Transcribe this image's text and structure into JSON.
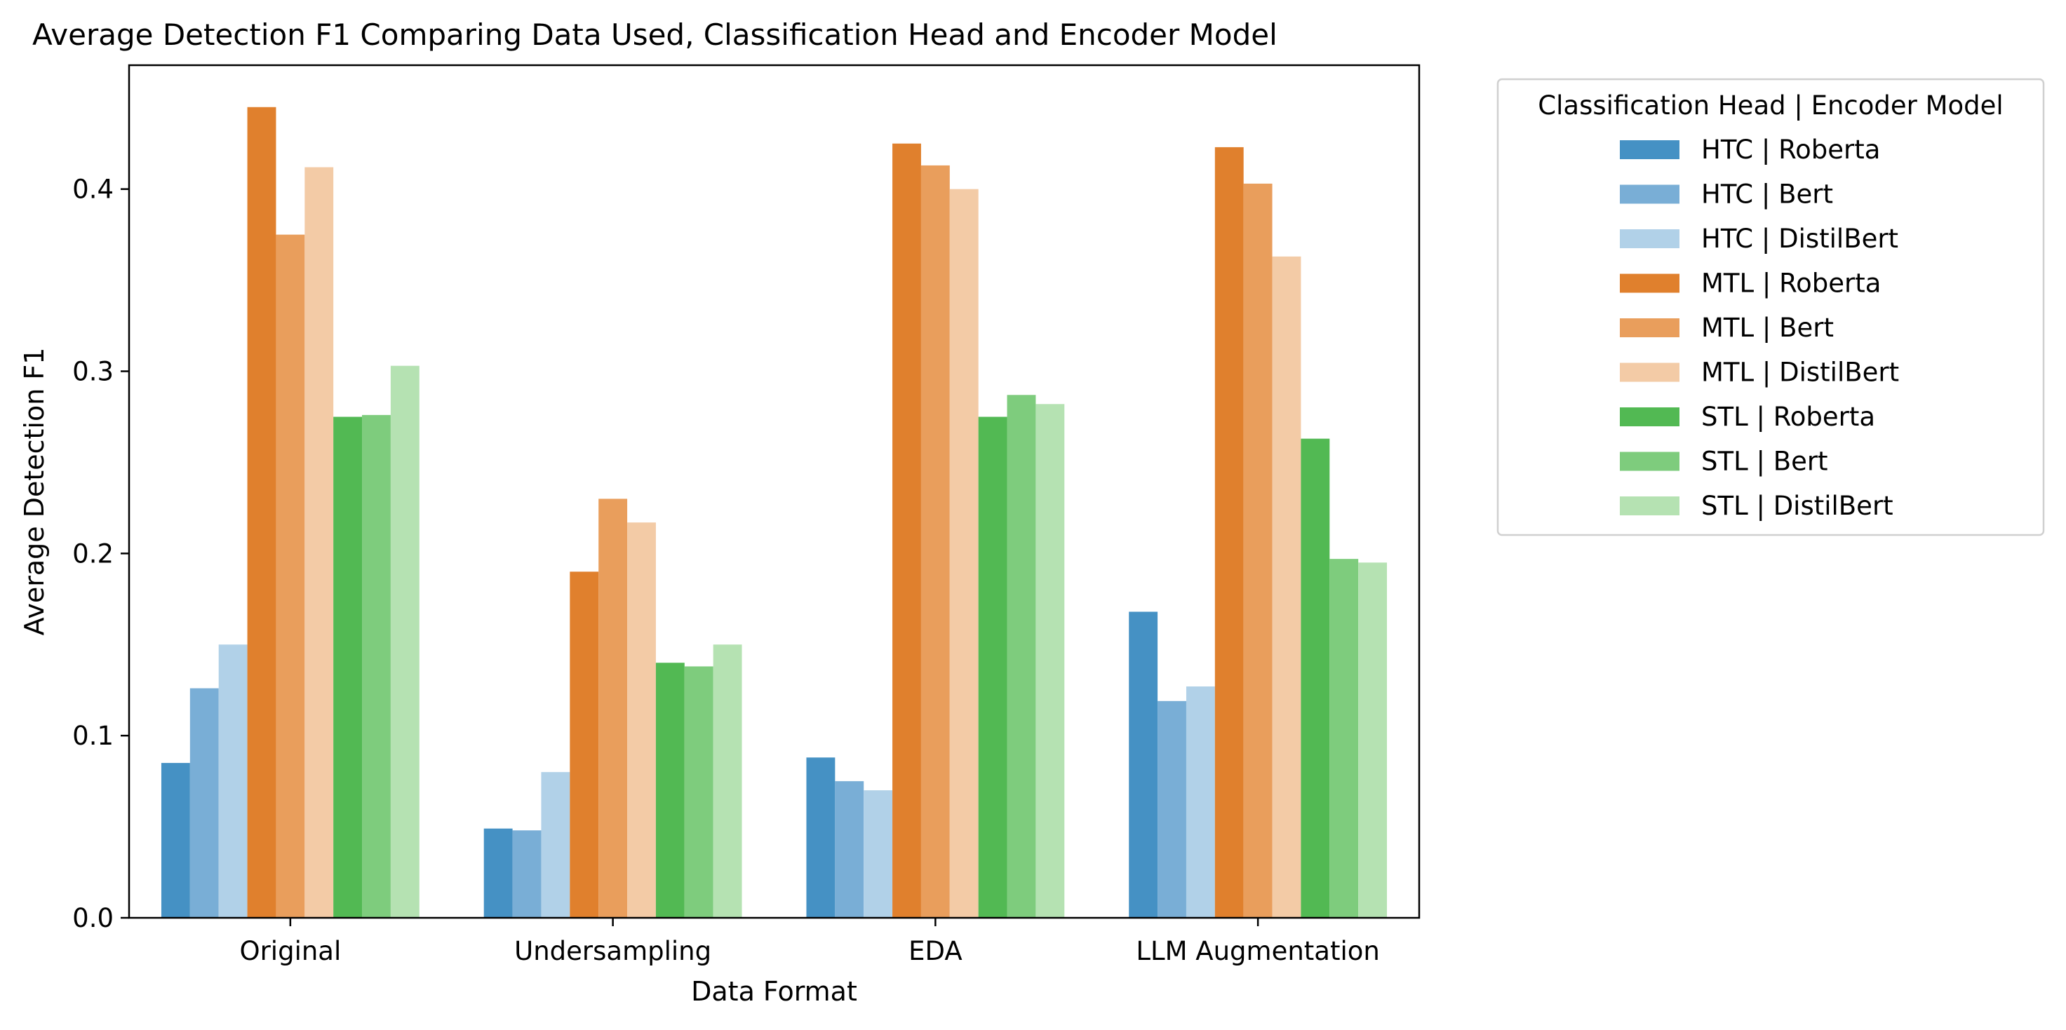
{
  "chart_data": {
    "type": "bar",
    "title": "Average Detection F1 Comparing Data Used, Classification Head and Encoder Model",
    "xlabel": "Data Format",
    "ylabel": "Average Detection F1",
    "categories": [
      "Original",
      "Undersampling",
      "EDA",
      "LLM Augmentation"
    ],
    "ylim": [
      0,
      0.468
    ],
    "yticks": [
      0.0,
      0.1,
      0.2,
      0.3,
      0.4
    ],
    "ytick_labels": [
      "0.0",
      "0.1",
      "0.2",
      "0.3",
      "0.4"
    ],
    "grid": false,
    "legend": {
      "title": "Classification Head | Encoder Model",
      "placement": "outside-right-top"
    },
    "series": [
      {
        "name": "HTC | Roberta",
        "color": "#4591c4",
        "values": [
          0.085,
          0.049,
          0.088,
          0.168
        ]
      },
      {
        "name": "HTC | Bert",
        "color": "#79aed6",
        "values": [
          0.126,
          0.048,
          0.075,
          0.119
        ]
      },
      {
        "name": "HTC | DistilBert",
        "color": "#b1d1e8",
        "values": [
          0.15,
          0.08,
          0.07,
          0.127
        ]
      },
      {
        "name": "MTL | Roberta",
        "color": "#e0802d",
        "values": [
          0.445,
          0.19,
          0.425,
          0.423
        ]
      },
      {
        "name": "MTL | Bert",
        "color": "#e99e5c",
        "values": [
          0.375,
          0.23,
          0.413,
          0.403
        ]
      },
      {
        "name": "MTL | DistilBert",
        "color": "#f3cba6",
        "values": [
          0.412,
          0.217,
          0.4,
          0.363
        ]
      },
      {
        "name": "STL | Roberta",
        "color": "#52b953",
        "values": [
          0.275,
          0.14,
          0.275,
          0.263
        ]
      },
      {
        "name": "STL | Bert",
        "color": "#7ecc7d",
        "values": [
          0.276,
          0.138,
          0.287,
          0.197
        ]
      },
      {
        "name": "STL | DistilBert",
        "color": "#b5e2b2",
        "values": [
          0.303,
          0.15,
          0.282,
          0.195
        ]
      }
    ]
  }
}
